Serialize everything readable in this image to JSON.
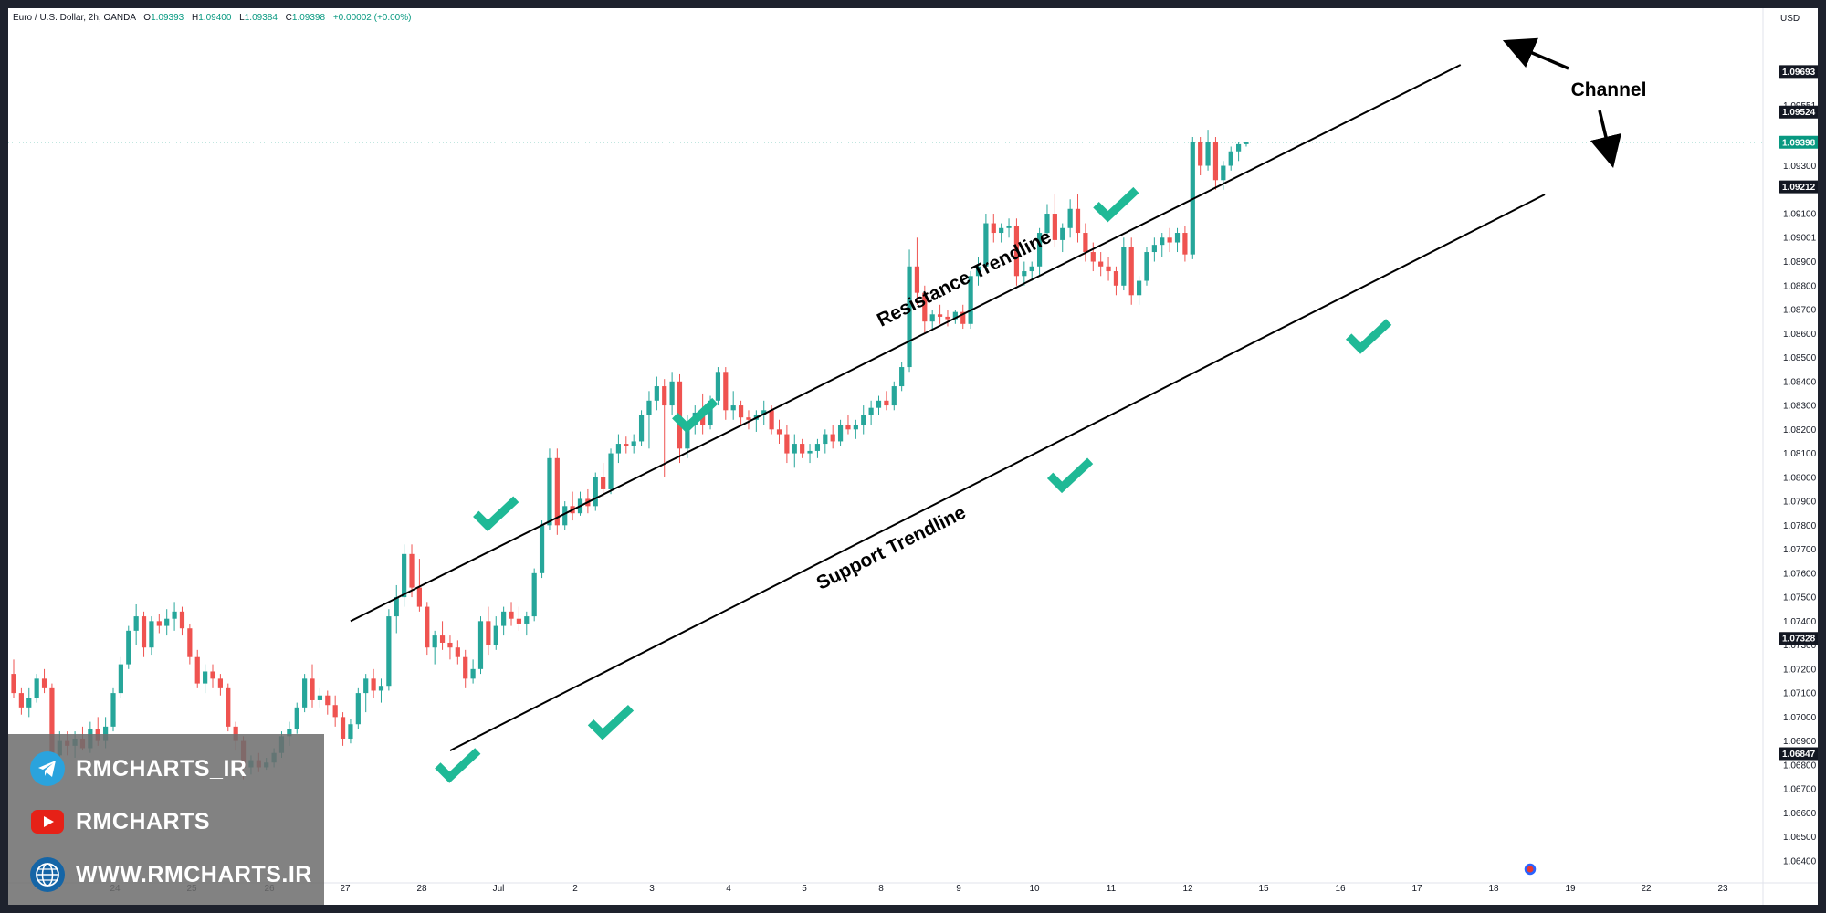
{
  "header": {
    "symbol": "Euro / U.S. Dollar, 2h, OANDA",
    "o_label": "O",
    "o_value": "1.09393",
    "h_label": "H",
    "h_value": "1.09400",
    "l_label": "L",
    "l_value": "1.09384",
    "c_label": "C",
    "c_value": "1.09398",
    "change": "+0.00002 (+0.00%)",
    "currency": "USD"
  },
  "overlay": {
    "telegram": "RMCHARTS_IR",
    "youtube": "RMCHARTS",
    "website": "WWW.RMCHARTS.IR"
  },
  "colors": {
    "up": "#26a69a",
    "down": "#ef5350",
    "check": "#1fb996",
    "badge": "#131722",
    "current_badge": "#089981",
    "line": "#000000"
  },
  "chart_data": {
    "type": "candlestick",
    "timeframe": "2h",
    "ylim": [
      1.0635,
      1.099
    ],
    "y_ticks": [
      1.064,
      1.065,
      1.066,
      1.067,
      1.068,
      1.069,
      1.07,
      1.071,
      1.072,
      1.073,
      1.074,
      1.075,
      1.076,
      1.077,
      1.078,
      1.079,
      1.08,
      1.081,
      1.082,
      1.083,
      1.084,
      1.085,
      1.086,
      1.087,
      1.088,
      1.089,
      1.09001,
      1.091,
      1.093,
      1.09551
    ],
    "y_badges": [
      {
        "label": "1.09693",
        "value": 1.09693,
        "color": "#131722"
      },
      {
        "label": "1.09524",
        "value": 1.09524,
        "color": "#131722"
      },
      {
        "label": "1.09398",
        "value": 1.09398,
        "color": "#089981"
      },
      {
        "label": "1.09212",
        "value": 1.09212,
        "color": "#131722"
      },
      {
        "label": "1.07328",
        "value": 1.07328,
        "color": "#131722"
      },
      {
        "label": "1.06847",
        "value": 1.06847,
        "color": "#131722"
      }
    ],
    "x_labels": [
      "24",
      "25",
      "26",
      "27",
      "28",
      "Jul",
      "2",
      "3",
      "4",
      "5",
      "8",
      "9",
      "10",
      "11",
      "12",
      "15",
      "16",
      "17",
      "18",
      "19",
      "22",
      "23"
    ],
    "candles": [
      [
        1.0718,
        1.0724,
        1.0708,
        1.071
      ],
      [
        1.071,
        1.0712,
        1.0701,
        1.0704
      ],
      [
        1.0704,
        1.0712,
        1.07,
        1.0708
      ],
      [
        1.0708,
        1.0718,
        1.0706,
        1.0716
      ],
      [
        1.0716,
        1.072,
        1.071,
        1.0712
      ],
      [
        1.0712,
        1.0714,
        1.068,
        1.0684
      ],
      [
        1.0684,
        1.0694,
        1.068,
        1.069
      ],
      [
        1.069,
        1.0694,
        1.0684,
        1.0688
      ],
      [
        1.0688,
        1.0694,
        1.0683,
        1.0691
      ],
      [
        1.0691,
        1.0696,
        1.0686,
        1.0687
      ],
      [
        1.0687,
        1.0698,
        1.0685,
        1.0695
      ],
      [
        1.0695,
        1.07,
        1.0688,
        1.069
      ],
      [
        1.069,
        1.07,
        1.0687,
        1.0696
      ],
      [
        1.0696,
        1.0712,
        1.0694,
        1.071
      ],
      [
        1.071,
        1.0725,
        1.0708,
        1.0722
      ],
      [
        1.0722,
        1.0738,
        1.072,
        1.0736
      ],
      [
        1.0736,
        1.0747,
        1.073,
        1.0742
      ],
      [
        1.0742,
        1.0744,
        1.0725,
        1.0729
      ],
      [
        1.0729,
        1.0742,
        1.0726,
        1.074
      ],
      [
        1.074,
        1.0743,
        1.0735,
        1.0738
      ],
      [
        1.0738,
        1.0745,
        1.0734,
        1.0741
      ],
      [
        1.0741,
        1.0748,
        1.0736,
        1.0744
      ],
      [
        1.0744,
        1.0746,
        1.0734,
        1.0737
      ],
      [
        1.0737,
        1.0739,
        1.0722,
        1.0725
      ],
      [
        1.0725,
        1.0728,
        1.0712,
        1.0714
      ],
      [
        1.0714,
        1.0722,
        1.071,
        1.0719
      ],
      [
        1.0719,
        1.0722,
        1.0712,
        1.0716
      ],
      [
        1.0716,
        1.0718,
        1.0709,
        1.0712
      ],
      [
        1.0712,
        1.0714,
        1.0694,
        1.0696
      ],
      [
        1.0696,
        1.0698,
        1.0686,
        1.069
      ],
      [
        1.069,
        1.0692,
        1.0674,
        1.0679
      ],
      [
        1.0679,
        1.0684,
        1.0676,
        1.0682
      ],
      [
        1.0682,
        1.0685,
        1.0677,
        1.0679
      ],
      [
        1.0679,
        1.0683,
        1.0678,
        1.0681
      ],
      [
        1.0681,
        1.0687,
        1.0679,
        1.0685
      ],
      [
        1.0685,
        1.0694,
        1.0683,
        1.0692
      ],
      [
        1.0692,
        1.0698,
        1.0688,
        1.0695
      ],
      [
        1.0695,
        1.0706,
        1.0693,
        1.0704
      ],
      [
        1.0704,
        1.0718,
        1.0702,
        1.0716
      ],
      [
        1.0716,
        1.0722,
        1.0704,
        1.0707
      ],
      [
        1.0707,
        1.0712,
        1.0704,
        1.0709
      ],
      [
        1.0709,
        1.0711,
        1.0701,
        1.0705
      ],
      [
        1.0705,
        1.0709,
        1.0696,
        1.07
      ],
      [
        1.07,
        1.0702,
        1.0688,
        1.0691
      ],
      [
        1.0691,
        1.0699,
        1.0689,
        1.0697
      ],
      [
        1.0697,
        1.0712,
        1.0695,
        1.071
      ],
      [
        1.071,
        1.0718,
        1.0702,
        1.0716
      ],
      [
        1.0716,
        1.072,
        1.0708,
        1.0711
      ],
      [
        1.0711,
        1.0716,
        1.0706,
        1.0713
      ],
      [
        1.0713,
        1.0745,
        1.0711,
        1.0742
      ],
      [
        1.0742,
        1.0755,
        1.0735,
        1.075
      ],
      [
        1.075,
        1.0772,
        1.0746,
        1.0768
      ],
      [
        1.0768,
        1.0772,
        1.075,
        1.0754
      ],
      [
        1.0754,
        1.0766,
        1.0744,
        1.0746
      ],
      [
        1.0746,
        1.0748,
        1.0726,
        1.0729
      ],
      [
        1.0729,
        1.0736,
        1.0722,
        1.0734
      ],
      [
        1.0734,
        1.074,
        1.0728,
        1.0731
      ],
      [
        1.0731,
        1.0734,
        1.0724,
        1.0729
      ],
      [
        1.0729,
        1.0732,
        1.0722,
        1.0725
      ],
      [
        1.0725,
        1.0728,
        1.0712,
        1.0716
      ],
      [
        1.0716,
        1.0724,
        1.0714,
        1.072
      ],
      [
        1.072,
        1.0742,
        1.0718,
        1.074
      ],
      [
        1.074,
        1.0746,
        1.0726,
        1.073
      ],
      [
        1.073,
        1.0742,
        1.0728,
        1.0738
      ],
      [
        1.0738,
        1.0746,
        1.0734,
        1.0744
      ],
      [
        1.0744,
        1.0748,
        1.0738,
        1.0741
      ],
      [
        1.0741,
        1.0746,
        1.0736,
        1.0739
      ],
      [
        1.0739,
        1.0744,
        1.0734,
        1.0742
      ],
      [
        1.0742,
        1.0762,
        1.074,
        1.076
      ],
      [
        1.076,
        1.0782,
        1.0758,
        1.078
      ],
      [
        1.078,
        1.0812,
        1.0778,
        1.0808
      ],
      [
        1.0808,
        1.0812,
        1.0776,
        1.078
      ],
      [
        1.078,
        1.079,
        1.0778,
        1.0788
      ],
      [
        1.0788,
        1.0794,
        1.0782,
        1.0785
      ],
      [
        1.0785,
        1.0794,
        1.0784,
        1.0791
      ],
      [
        1.0791,
        1.0795,
        1.0785,
        1.0788
      ],
      [
        1.0788,
        1.0802,
        1.0786,
        1.08
      ],
      [
        1.08,
        1.0806,
        1.0792,
        1.0795
      ],
      [
        1.0795,
        1.0812,
        1.0793,
        1.081
      ],
      [
        1.081,
        1.0818,
        1.0806,
        1.0814
      ],
      [
        1.0814,
        1.0817,
        1.081,
        1.0813
      ],
      [
        1.0813,
        1.0818,
        1.081,
        1.0815
      ],
      [
        1.0815,
        1.0828,
        1.0813,
        1.0826
      ],
      [
        1.0826,
        1.0836,
        1.0812,
        1.0832
      ],
      [
        1.0832,
        1.0842,
        1.0828,
        1.0838
      ],
      [
        1.0838,
        1.0841,
        1.08,
        1.083
      ],
      [
        1.083,
        1.0844,
        1.0826,
        1.084
      ],
      [
        1.084,
        1.0843,
        1.0806,
        1.0812
      ],
      [
        1.0812,
        1.0826,
        1.0808,
        1.0822
      ],
      [
        1.0822,
        1.083,
        1.0818,
        1.0827
      ],
      [
        1.0827,
        1.0835,
        1.0818,
        1.0822
      ],
      [
        1.0822,
        1.0834,
        1.082,
        1.0832
      ],
      [
        1.0832,
        1.0846,
        1.083,
        1.0844
      ],
      [
        1.0844,
        1.0846,
        1.0824,
        1.0828
      ],
      [
        1.0828,
        1.0836,
        1.0824,
        1.083
      ],
      [
        1.083,
        1.0832,
        1.0822,
        1.0825
      ],
      [
        1.0825,
        1.0828,
        1.082,
        1.0824
      ],
      [
        1.0824,
        1.0828,
        1.0819,
        1.0826
      ],
      [
        1.0826,
        1.0832,
        1.0822,
        1.0828
      ],
      [
        1.0828,
        1.083,
        1.0818,
        1.082
      ],
      [
        1.082,
        1.0824,
        1.0814,
        1.0818
      ],
      [
        1.0818,
        1.0822,
        1.0806,
        1.081
      ],
      [
        1.081,
        1.0818,
        1.0804,
        1.0814
      ],
      [
        1.0814,
        1.0816,
        1.0808,
        1.081
      ],
      [
        1.081,
        1.0814,
        1.0806,
        1.0811
      ],
      [
        1.0811,
        1.0816,
        1.0808,
        1.0814
      ],
      [
        1.0814,
        1.082,
        1.081,
        1.0818
      ],
      [
        1.0818,
        1.0822,
        1.0812,
        1.0815
      ],
      [
        1.0815,
        1.0824,
        1.0813,
        1.0822
      ],
      [
        1.0822,
        1.0826,
        1.0818,
        1.082
      ],
      [
        1.082,
        1.0824,
        1.0816,
        1.0822
      ],
      [
        1.0822,
        1.083,
        1.0818,
        1.0826
      ],
      [
        1.0826,
        1.0832,
        1.0822,
        1.0829
      ],
      [
        1.0829,
        1.0834,
        1.0826,
        1.0832
      ],
      [
        1.0832,
        1.0836,
        1.0828,
        1.083
      ],
      [
        1.083,
        1.084,
        1.0828,
        1.0838
      ],
      [
        1.0838,
        1.0848,
        1.0836,
        1.0846
      ],
      [
        1.0846,
        1.0895,
        1.0844,
        1.0888
      ],
      [
        1.0888,
        1.09,
        1.0872,
        1.0877
      ],
      [
        1.0877,
        1.088,
        1.086,
        1.0865
      ],
      [
        1.0865,
        1.087,
        1.0862,
        1.0868
      ],
      [
        1.0868,
        1.0872,
        1.0864,
        1.0867
      ],
      [
        1.0867,
        1.087,
        1.0863,
        1.0866
      ],
      [
        1.0866,
        1.087,
        1.0864,
        1.0869
      ],
      [
        1.0869,
        1.0872,
        1.0862,
        1.0864
      ],
      [
        1.0864,
        1.0886,
        1.0862,
        1.0884
      ],
      [
        1.0884,
        1.0892,
        1.088,
        1.0888
      ],
      [
        1.0888,
        1.091,
        1.0886,
        1.0906
      ],
      [
        1.0906,
        1.091,
        1.0898,
        1.0902
      ],
      [
        1.0902,
        1.0906,
        1.0898,
        1.0904
      ],
      [
        1.0904,
        1.0908,
        1.09,
        1.0905
      ],
      [
        1.0905,
        1.0908,
        1.088,
        1.0884
      ],
      [
        1.0884,
        1.089,
        1.088,
        1.0886
      ],
      [
        1.0886,
        1.089,
        1.0882,
        1.0888
      ],
      [
        1.0888,
        1.0904,
        1.0884,
        1.0902
      ],
      [
        1.0902,
        1.0914,
        1.09,
        1.091
      ],
      [
        1.091,
        1.0918,
        1.0896,
        1.0899
      ],
      [
        1.0899,
        1.0906,
        1.0894,
        1.0904
      ],
      [
        1.0904,
        1.0916,
        1.09,
        1.0912
      ],
      [
        1.0912,
        1.0918,
        1.0898,
        1.0902
      ],
      [
        1.0902,
        1.0906,
        1.089,
        1.0894
      ],
      [
        1.0894,
        1.0898,
        1.0886,
        1.089
      ],
      [
        1.089,
        1.0894,
        1.0884,
        1.0888
      ],
      [
        1.0888,
        1.0892,
        1.0882,
        1.0886
      ],
      [
        1.0886,
        1.0888,
        1.0876,
        1.088
      ],
      [
        1.088,
        1.09,
        1.0878,
        1.0896
      ],
      [
        1.0896,
        1.09,
        1.0872,
        1.0876
      ],
      [
        1.0876,
        1.0884,
        1.0872,
        1.0882
      ],
      [
        1.0882,
        1.0896,
        1.088,
        1.0894
      ],
      [
        1.0894,
        1.09,
        1.089,
        1.0897
      ],
      [
        1.0897,
        1.0902,
        1.0892,
        1.09
      ],
      [
        1.09,
        1.0904,
        1.0894,
        1.0898
      ],
      [
        1.0898,
        1.0904,
        1.0894,
        1.0902
      ],
      [
        1.0902,
        1.0905,
        1.089,
        1.0893
      ],
      [
        1.0893,
        1.0942,
        1.0891,
        1.094
      ],
      [
        1.094,
        1.0942,
        1.0926,
        1.093
      ],
      [
        1.093,
        1.0945,
        1.0928,
        1.094
      ],
      [
        1.094,
        1.0942,
        1.092,
        1.0924
      ],
      [
        1.0924,
        1.0932,
        1.092,
        1.093
      ],
      [
        1.093,
        1.0938,
        1.0928,
        1.0936
      ],
      [
        1.0936,
        1.094,
        1.0932,
        1.0939
      ],
      [
        1.0939,
        1.094,
        1.0938,
        1.09398
      ]
    ],
    "lines": [
      {
        "name": "Resistance Trendline",
        "from": {
          "candle": 44,
          "price": 1.074
        },
        "to": {
          "candle": 189,
          "price": 1.09721
        }
      },
      {
        "name": "Support Trendline",
        "from": {
          "candle": 57,
          "price": 1.0686
        },
        "to": {
          "candle": 200,
          "price": 1.0918
        }
      }
    ],
    "annotations": {
      "resistance_label": "Resistance Trendline",
      "support_label": "Support Trendline",
      "channel_label": "Channel"
    },
    "check_marks": [
      {
        "candle": 63,
        "price": 1.0784
      },
      {
        "candle": 89,
        "price": 1.0825
      },
      {
        "candle": 144,
        "price": 1.0913
      },
      {
        "candle": 177,
        "price": 1.0858
      },
      {
        "candle": 58,
        "price": 1.0679
      },
      {
        "candle": 78,
        "price": 1.0697
      },
      {
        "candle": 138,
        "price": 1.08
      }
    ]
  }
}
